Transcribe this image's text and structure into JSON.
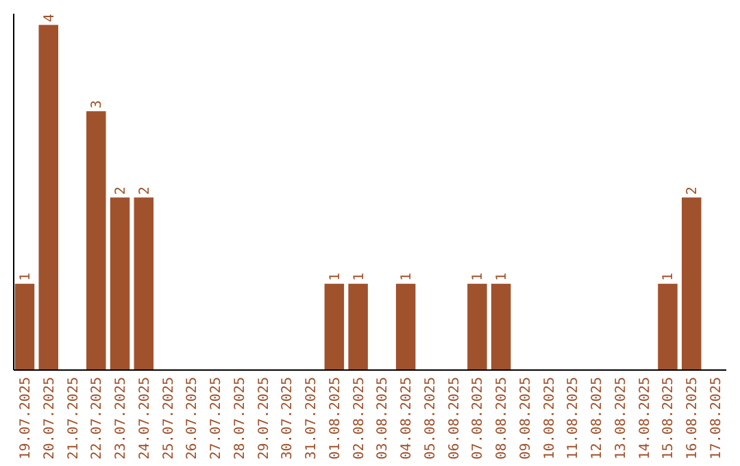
{
  "chart_data": {
    "type": "bar",
    "categories": [
      "19.07.2025",
      "20.07.2025",
      "21.07.2025",
      "22.07.2025",
      "23.07.2025",
      "24.07.2025",
      "25.07.2025",
      "26.07.2025",
      "27.07.2025",
      "28.07.2025",
      "29.07.2025",
      "30.07.2025",
      "31.07.2025",
      "01.08.2025",
      "02.08.2025",
      "03.08.2025",
      "04.08.2025",
      "05.08.2025",
      "06.08.2025",
      "07.08.2025",
      "08.08.2025",
      "09.08.2025",
      "10.08.2025",
      "11.08.2025",
      "12.08.2025",
      "13.08.2025",
      "14.08.2025",
      "15.08.2025",
      "16.08.2025",
      "17.08.2025"
    ],
    "values": [
      1,
      4,
      0,
      3,
      2,
      2,
      0,
      0,
      0,
      0,
      0,
      0,
      0,
      1,
      1,
      0,
      1,
      0,
      0,
      1,
      1,
      0,
      0,
      0,
      0,
      0,
      0,
      1,
      2,
      0
    ],
    "value_labels": [
      "1",
      "4",
      null,
      "3",
      "2",
      "2",
      null,
      null,
      null,
      null,
      null,
      null,
      null,
      "1",
      "1",
      null,
      "1",
      null,
      null,
      "1",
      "1",
      null,
      null,
      null,
      null,
      null,
      null,
      "1",
      "2",
      null
    ],
    "color": "#a0522d",
    "ylim": [
      0,
      4.13
    ],
    "tick_labels": "x"
  }
}
